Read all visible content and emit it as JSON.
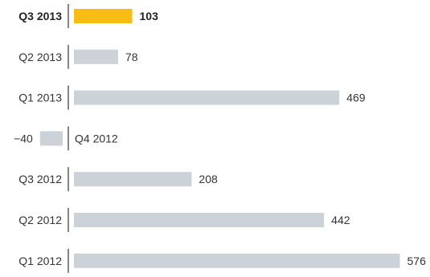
{
  "chart_data": {
    "type": "bar",
    "orientation": "horizontal",
    "title": "",
    "xlabel": "",
    "ylabel": "",
    "categories": [
      "Q3 2013",
      "Q2 2013",
      "Q1 2013",
      "Q4 2012",
      "Q3 2012",
      "Q2 2012",
      "Q1 2012"
    ],
    "values": [
      103,
      78,
      469,
      -40,
      208,
      442,
      576
    ],
    "value_labels": [
      "103",
      "78",
      "469",
      "−40",
      "208",
      "442",
      "576"
    ],
    "highlight_index": 0,
    "grid": false,
    "legend": "none",
    "colors": {
      "highlight": "#F9BC15",
      "bar": "#CDD1D8",
      "text": "#333333",
      "axis": "#333333"
    }
  }
}
